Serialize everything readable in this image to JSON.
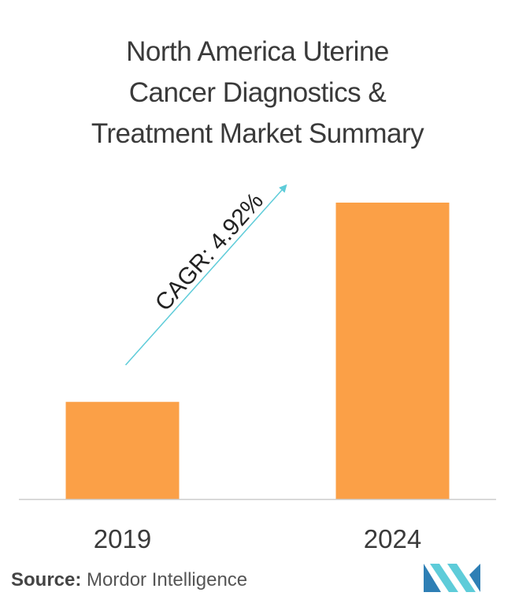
{
  "chart_data": {
    "type": "bar",
    "title_lines": [
      "North America Uterine",
      "Cancer Diagnostics &",
      "Treatment Market Summary"
    ],
    "categories": [
      "2019",
      "2024"
    ],
    "values": [
      1.0,
      3.05
    ],
    "ylim": [
      0,
      3.05
    ],
    "annotation": "CAGR: 4.92%",
    "grid": false,
    "legend": "none",
    "colors": {
      "bar": "#FBA047",
      "arrow": "#5ECCD9",
      "axis": "#cccccc",
      "text": "#3a3a3a"
    }
  },
  "source": {
    "label": "Source:",
    "text": "Mordor Intelligence"
  },
  "logo": {
    "icon": "mordor-intelligence-logo",
    "colors": [
      "#2E7FB5",
      "#5ECCD9"
    ]
  }
}
